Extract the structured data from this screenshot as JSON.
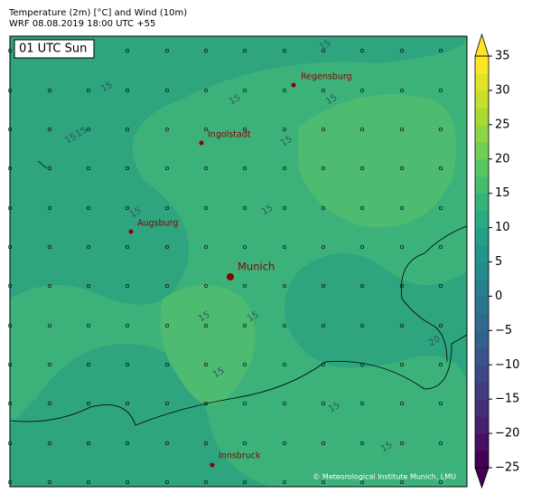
{
  "header": {
    "title": "Temperature (2m) [°C] and Wind (10m)",
    "subtitle": "WRF 08.08.2019 18:00 UTC +55"
  },
  "map": {
    "time_label": "01 UTC Sun",
    "cities": [
      {
        "name": "Regensburg"
      },
      {
        "name": "Ingolstadt"
      },
      {
        "name": "Augsburg"
      },
      {
        "name": "Munich"
      },
      {
        "name": "Innsbruck"
      }
    ],
    "contour_labels": [
      15,
      15,
      15,
      15,
      15,
      15,
      15,
      15,
      15,
      15,
      15,
      15,
      15,
      15,
      20
    ],
    "credit": "© Meteorological Institute Munich, LMU"
  },
  "colorbar": {
    "lim": [
      -25,
      35
    ],
    "ticks": [
      {
        "value": -25,
        "label": "−25"
      },
      {
        "value": -20,
        "label": "−20"
      },
      {
        "value": -15,
        "label": "−15"
      },
      {
        "value": -10,
        "label": "−10"
      },
      {
        "value": -5,
        "label": "−5"
      },
      0,
      5,
      10,
      15,
      20,
      25,
      30,
      35
    ]
  }
}
